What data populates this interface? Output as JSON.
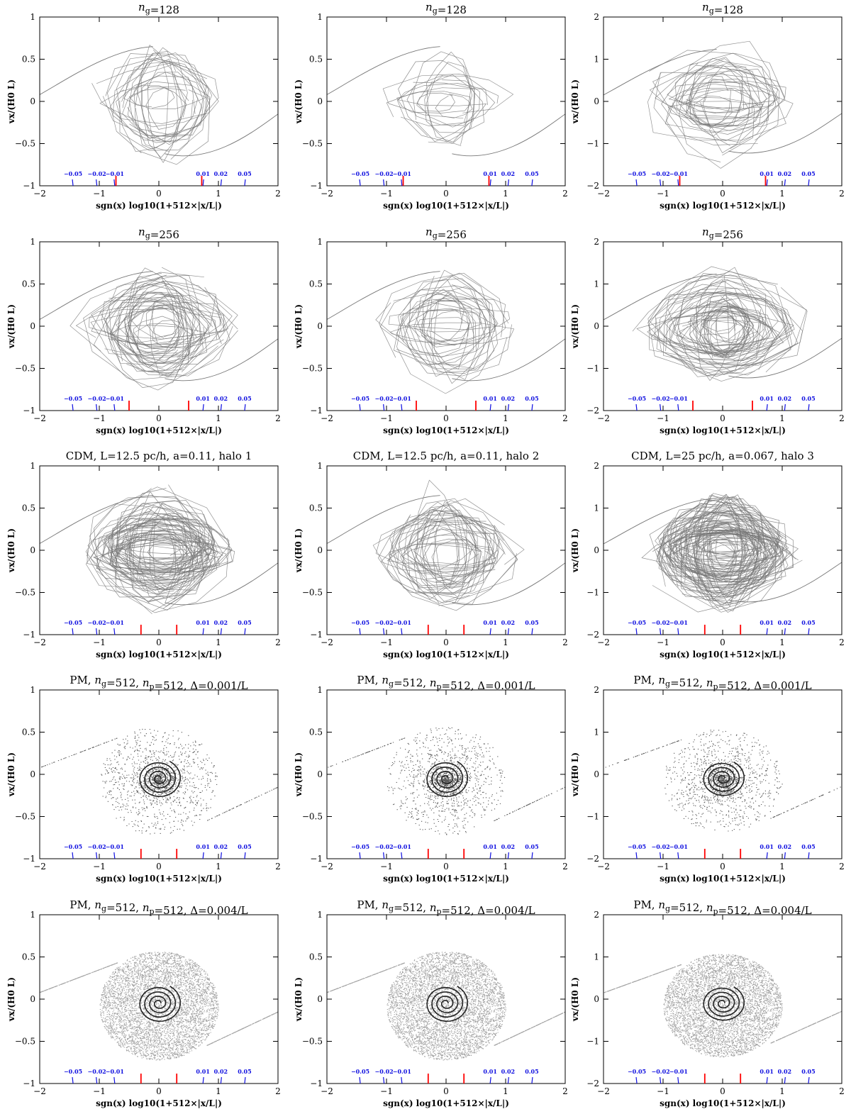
{
  "figure": {
    "xlabel": "sgn(x)  log10(1+512×|x/L|)",
    "ylabel": "vx/(H0 L)",
    "marker_labels": [
      "−0.05",
      "−0.02",
      "−0.01",
      "0.01",
      "0.02",
      "0.05"
    ],
    "colors": {
      "axes": "#000000",
      "curves": "#777777",
      "markers_blue": "#1010e0",
      "markers_red": "#ff0000"
    }
  },
  "chart_data": [
    {
      "type": "line",
      "title": "ng=128",
      "style": "curves",
      "xlim": [
        -2,
        2
      ],
      "ylim": [
        -1,
        1
      ],
      "yticks": [
        -1,
        -0.5,
        0,
        0.5,
        1
      ],
      "xticks": [
        -2,
        -1,
        0,
        1,
        2
      ],
      "red_markers": [
        -0.72,
        0.72
      ],
      "blue_markers": [
        -1.44,
        -1.04,
        -0.74,
        0.74,
        1.04,
        1.44
      ]
    },
    {
      "type": "line",
      "title": "ng=128",
      "style": "curves",
      "xlim": [
        -2,
        2
      ],
      "ylim": [
        -1,
        1
      ],
      "yticks": [
        -1,
        -0.5,
        0,
        0.5,
        1
      ],
      "xticks": [
        -2,
        -1,
        0,
        1,
        2
      ],
      "red_markers": [
        -0.72,
        0.72
      ],
      "blue_markers": [
        -1.44,
        -1.04,
        -0.74,
        0.74,
        1.04,
        1.44
      ]
    },
    {
      "type": "line",
      "title": "ng=128",
      "style": "curves",
      "xlim": [
        -2,
        2
      ],
      "ylim": [
        -2,
        2
      ],
      "yticks": [
        -2,
        -1,
        0,
        1,
        2
      ],
      "xticks": [
        -2,
        -1,
        0,
        1,
        2
      ],
      "red_markers": [
        -0.72,
        0.72
      ],
      "blue_markers": [
        -1.44,
        -1.04,
        -0.74,
        0.74,
        1.04,
        1.44
      ]
    },
    {
      "type": "line",
      "title": "ng=256",
      "style": "curves",
      "xlim": [
        -2,
        2
      ],
      "ylim": [
        -1,
        1
      ],
      "yticks": [
        -1,
        -0.5,
        0,
        0.5,
        1
      ],
      "xticks": [
        -2,
        -1,
        0,
        1,
        2
      ],
      "red_markers": [
        -0.5,
        0.5
      ],
      "blue_markers": [
        -1.44,
        -1.04,
        -0.74,
        0.74,
        1.04,
        1.44
      ]
    },
    {
      "type": "line",
      "title": "ng=256",
      "style": "curves",
      "xlim": [
        -2,
        2
      ],
      "ylim": [
        -1,
        1
      ],
      "yticks": [
        -1,
        -0.5,
        0,
        0.5,
        1
      ],
      "xticks": [
        -2,
        -1,
        0,
        1,
        2
      ],
      "red_markers": [
        -0.5,
        0.5
      ],
      "blue_markers": [
        -1.44,
        -1.04,
        -0.74,
        0.74,
        1.04,
        1.44
      ]
    },
    {
      "type": "line",
      "title": "ng=256",
      "style": "curves",
      "xlim": [
        -2,
        2
      ],
      "ylim": [
        -2,
        2
      ],
      "yticks": [
        -2,
        -1,
        0,
        1,
        2
      ],
      "xticks": [
        -2,
        -1,
        0,
        1,
        2
      ],
      "red_markers": [
        -0.5,
        0.5
      ],
      "blue_markers": [
        -1.44,
        -1.04,
        -0.74,
        0.74,
        1.04,
        1.44
      ]
    },
    {
      "type": "line",
      "title": "CDM, L=12.5 pc/h, a=0.11, halo 1",
      "style": "curves",
      "xlim": [
        -2,
        2
      ],
      "ylim": [
        -1,
        1
      ],
      "yticks": [
        -1,
        -0.5,
        0,
        0.5,
        1
      ],
      "xticks": [
        -2,
        -1,
        0,
        1,
        2
      ],
      "red_markers": [
        -0.3,
        0.3
      ],
      "blue_markers": [
        -1.44,
        -1.04,
        -0.74,
        0.74,
        1.04,
        1.44
      ]
    },
    {
      "type": "line",
      "title": "CDM, L=12.5 pc/h, a=0.11, halo 2",
      "style": "curves",
      "xlim": [
        -2,
        2
      ],
      "ylim": [
        -1,
        1
      ],
      "yticks": [
        -1,
        -0.5,
        0,
        0.5,
        1
      ],
      "xticks": [
        -2,
        -1,
        0,
        1,
        2
      ],
      "red_markers": [
        -0.3,
        0.3
      ],
      "blue_markers": [
        -1.44,
        -1.04,
        -0.74,
        0.74,
        1.04,
        1.44
      ]
    },
    {
      "type": "line",
      "title": "CDM, L=25 pc/h, a=0.067, halo 3",
      "style": "curves",
      "xlim": [
        -2,
        2
      ],
      "ylim": [
        -2,
        2
      ],
      "yticks": [
        -2,
        -1,
        0,
        1,
        2
      ],
      "xticks": [
        -2,
        -1,
        0,
        1,
        2
      ],
      "red_markers": [
        -0.3,
        0.3
      ],
      "blue_markers": [
        -1.44,
        -1.04,
        -0.74,
        0.74,
        1.04,
        1.44
      ]
    },
    {
      "type": "scatter",
      "title": "PM, ng=512, np=512, Δ=0.001/L",
      "style": "sparse",
      "xlim": [
        -2,
        2
      ],
      "ylim": [
        -1,
        1
      ],
      "yticks": [
        -1,
        -0.5,
        0,
        0.5,
        1
      ],
      "xticks": [
        -2,
        -1,
        0,
        1,
        2
      ],
      "red_markers": [
        -0.3,
        0.3
      ],
      "blue_markers": [
        -1.44,
        -1.04,
        -0.74,
        0.74,
        1.04,
        1.44
      ]
    },
    {
      "type": "scatter",
      "title": "PM, ng=512, np=512, Δ=0.001/L",
      "style": "sparse",
      "xlim": [
        -2,
        2
      ],
      "ylim": [
        -1,
        1
      ],
      "yticks": [
        -1,
        -0.5,
        0,
        0.5,
        1
      ],
      "xticks": [
        -2,
        -1,
        0,
        1,
        2
      ],
      "red_markers": [
        -0.3,
        0.3
      ],
      "blue_markers": [
        -1.44,
        -1.04,
        -0.74,
        0.74,
        1.04,
        1.44
      ]
    },
    {
      "type": "scatter",
      "title": "PM, ng=512, np=512, Δ=0.001/L",
      "style": "sparse",
      "xlim": [
        -2,
        2
      ],
      "ylim": [
        -2,
        2
      ],
      "yticks": [
        -2,
        -1,
        0,
        1,
        2
      ],
      "xticks": [
        -2,
        -1,
        0,
        1,
        2
      ],
      "red_markers": [
        -0.3,
        0.3
      ],
      "blue_markers": [
        -1.44,
        -1.04,
        -0.74,
        0.74,
        1.04,
        1.44
      ]
    },
    {
      "type": "scatter",
      "title": "PM, ng=512, np=512, Δ=0.004/L",
      "style": "dense",
      "xlim": [
        -2,
        2
      ],
      "ylim": [
        -1,
        1
      ],
      "yticks": [
        -1,
        -0.5,
        0,
        0.5,
        1
      ],
      "xticks": [
        -2,
        -1,
        0,
        1,
        2
      ],
      "red_markers": [
        -0.3,
        0.3
      ],
      "blue_markers": [
        -1.44,
        -1.04,
        -0.74,
        0.74,
        1.04,
        1.44
      ]
    },
    {
      "type": "scatter",
      "title": "PM, ng=512, np=512, Δ=0.004/L",
      "style": "dense",
      "xlim": [
        -2,
        2
      ],
      "ylim": [
        -1,
        1
      ],
      "yticks": [
        -1,
        -0.5,
        0,
        0.5,
        1
      ],
      "xticks": [
        -2,
        -1,
        0,
        1,
        2
      ],
      "red_markers": [
        -0.3,
        0.3
      ],
      "blue_markers": [
        -1.44,
        -1.04,
        -0.74,
        0.74,
        1.04,
        1.44
      ]
    },
    {
      "type": "scatter",
      "title": "PM, ng=512, np=512, Δ=0.004/L",
      "style": "dense",
      "xlim": [
        -2,
        2
      ],
      "ylim": [
        -2,
        2
      ],
      "yticks": [
        -2,
        -1,
        0,
        1,
        2
      ],
      "xticks": [
        -2,
        -1,
        0,
        1,
        2
      ],
      "red_markers": [
        -0.3,
        0.3
      ],
      "blue_markers": [
        -1.44,
        -1.04,
        -0.74,
        0.74,
        1.04,
        1.44
      ]
    }
  ]
}
